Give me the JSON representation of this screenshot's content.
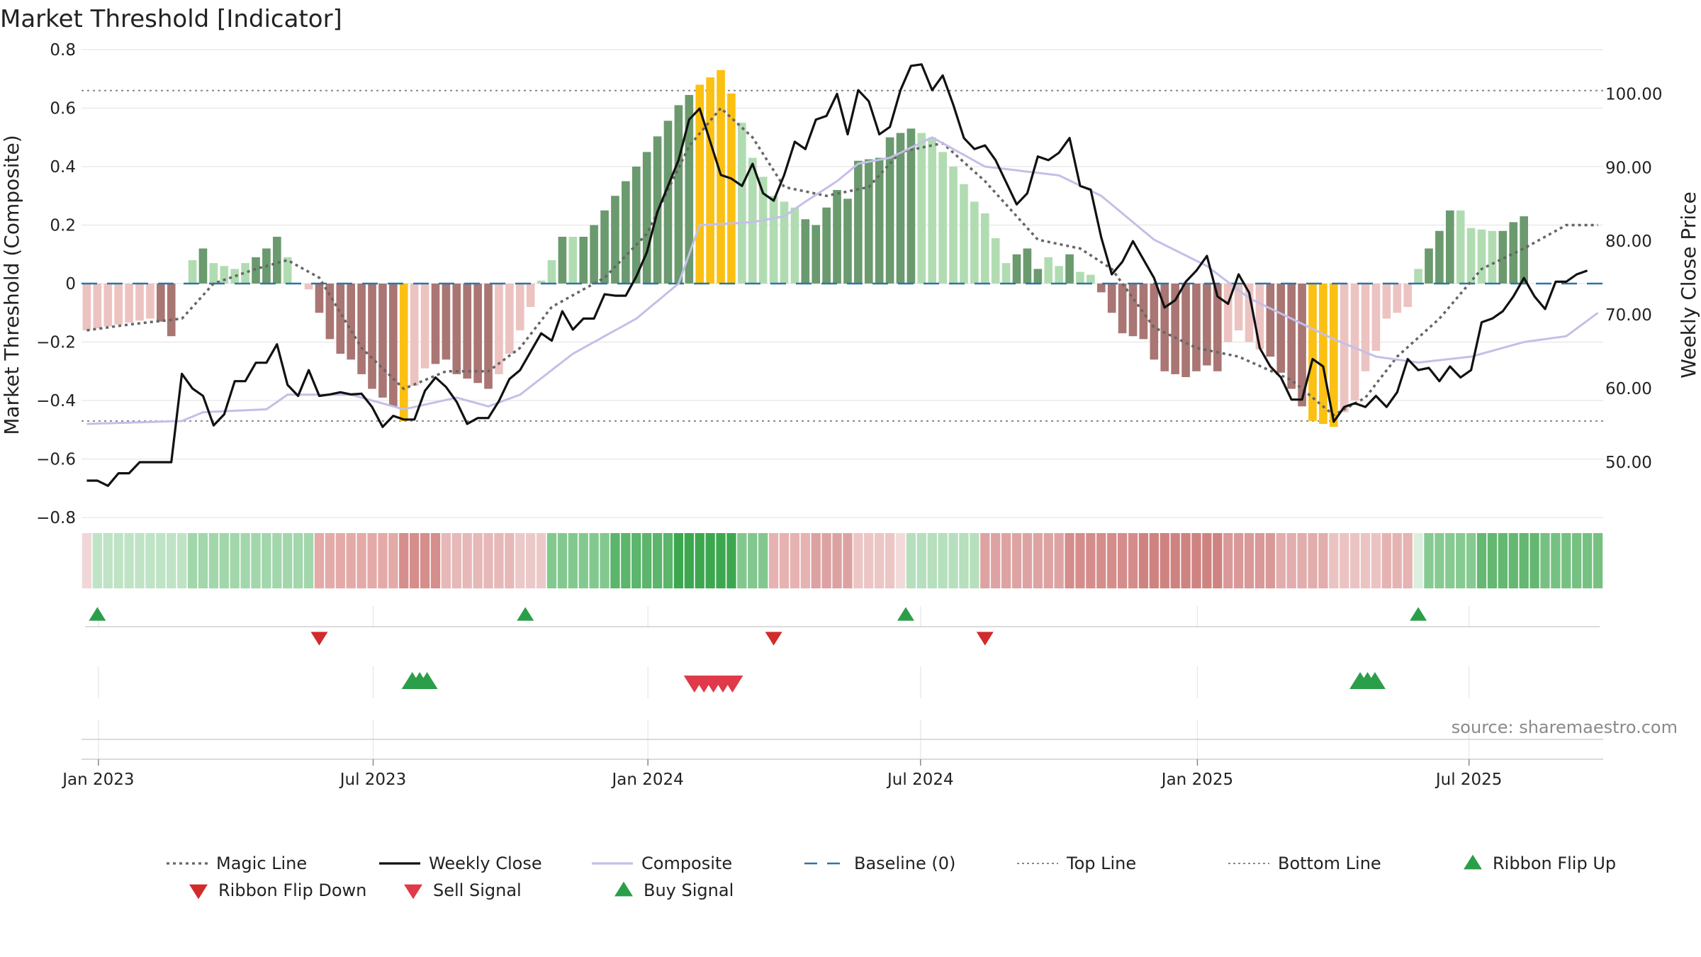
{
  "chart_data": {
    "type": "bar",
    "title": "Market Threshold [Indicator]",
    "ylabel_left": "Market Threshold (Composite)",
    "ylabel_right": "Weekly Close Price",
    "ylim_left": [
      -0.8,
      0.8
    ],
    "ylim_right": [
      42.5,
      106
    ],
    "yticks_left": [
      "0.8",
      "0.6",
      "0.4",
      "0.2",
      "0",
      "−0.2",
      "−0.4",
      "−0.6",
      "−0.8"
    ],
    "yticks_left_values": [
      0.8,
      0.6,
      0.4,
      0.2,
      0,
      -0.2,
      -0.4,
      -0.6,
      -0.8
    ],
    "yticks_right": [
      "100.00",
      "90.00",
      "80.00",
      "70.00",
      "60.00",
      "50.00"
    ],
    "yticks_right_values": [
      100,
      90,
      80,
      70,
      60,
      50
    ],
    "x_ticks": [
      "Jan 2023",
      "Jul 2023",
      "Jan 2024",
      "Jul 2024",
      "Jan 2025",
      "Jul 2025"
    ],
    "x_tick_weeks": [
      1.6,
      27.6,
      53.6,
      79.4,
      105.6,
      131.3
    ],
    "n_weeks": 144,
    "top_line": 0.66,
    "bottom_line": -0.47,
    "composite_anchors": [
      [
        0,
        -0.48
      ],
      [
        9,
        -0.47
      ],
      [
        11,
        -0.44
      ],
      [
        17,
        -0.43
      ],
      [
        19,
        -0.38
      ],
      [
        25,
        -0.38
      ],
      [
        28,
        -0.41
      ],
      [
        30,
        -0.43
      ],
      [
        35,
        -0.39
      ],
      [
        38,
        -0.42
      ],
      [
        41,
        -0.38
      ],
      [
        46,
        -0.24
      ],
      [
        52,
        -0.12
      ],
      [
        56,
        0.0
      ],
      [
        58,
        0.2
      ],
      [
        63,
        0.21
      ],
      [
        66,
        0.23
      ],
      [
        68,
        0.28
      ],
      [
        71,
        0.35
      ],
      [
        73,
        0.41
      ],
      [
        76,
        0.43
      ],
      [
        80,
        0.5
      ],
      [
        85,
        0.4
      ],
      [
        92,
        0.37
      ],
      [
        96,
        0.3
      ],
      [
        101,
        0.15
      ],
      [
        106,
        0.06
      ],
      [
        110,
        -0.05
      ],
      [
        114,
        -0.12
      ],
      [
        118,
        -0.19
      ],
      [
        122,
        -0.25
      ],
      [
        126,
        -0.27
      ],
      [
        131,
        -0.25
      ],
      [
        136,
        -0.2
      ],
      [
        140,
        -0.18
      ],
      [
        143,
        -0.1
      ]
    ],
    "magic_anchors": [
      [
        0,
        -0.16
      ],
      [
        4,
        -0.14
      ],
      [
        9,
        -0.12
      ],
      [
        12,
        0.0
      ],
      [
        16,
        0.05
      ],
      [
        19,
        0.08
      ],
      [
        22,
        0.02
      ],
      [
        26,
        -0.22
      ],
      [
        30,
        -0.36
      ],
      [
        34,
        -0.3
      ],
      [
        38,
        -0.3
      ],
      [
        41,
        -0.22
      ],
      [
        44,
        -0.08
      ],
      [
        49,
        0.02
      ],
      [
        53,
        0.17
      ],
      [
        57,
        0.47
      ],
      [
        60,
        0.6
      ],
      [
        63,
        0.5
      ],
      [
        66,
        0.33
      ],
      [
        70,
        0.3
      ],
      [
        74,
        0.33
      ],
      [
        77,
        0.45
      ],
      [
        81,
        0.48
      ],
      [
        85,
        0.35
      ],
      [
        90,
        0.15
      ],
      [
        94,
        0.12
      ],
      [
        97,
        0.05
      ],
      [
        101,
        -0.15
      ],
      [
        105,
        -0.22
      ],
      [
        109,
        -0.25
      ],
      [
        114,
        -0.33
      ],
      [
        118,
        -0.45
      ],
      [
        121,
        -0.39
      ],
      [
        124,
        -0.25
      ],
      [
        128,
        -0.12
      ],
      [
        132,
        0.05
      ],
      [
        136,
        0.12
      ],
      [
        140,
        0.2
      ],
      [
        143,
        0.2
      ]
    ],
    "weekly_close_anchors": [
      [
        0,
        47.5
      ],
      [
        1,
        47.5
      ],
      [
        2,
        46.8
      ],
      [
        3,
        48.5
      ],
      [
        4,
        48.5
      ],
      [
        5,
        50
      ],
      [
        6,
        50
      ],
      [
        7,
        50
      ],
      [
        8,
        50
      ],
      [
        9,
        62
      ],
      [
        10,
        60
      ],
      [
        11,
        59
      ],
      [
        12,
        55
      ],
      [
        13,
        56.5
      ],
      [
        14,
        61
      ],
      [
        15,
        61
      ],
      [
        16,
        63.5
      ],
      [
        17,
        63.5
      ],
      [
        18,
        66
      ],
      [
        19,
        60.5
      ],
      [
        20,
        59
      ],
      [
        21,
        62.5
      ],
      [
        22,
        59
      ],
      [
        23,
        59.2
      ],
      [
        24,
        59.5
      ],
      [
        25,
        59.2
      ],
      [
        26,
        59.3
      ],
      [
        27,
        57.5
      ],
      [
        28,
        54.8
      ],
      [
        29,
        56.3
      ],
      [
        30,
        55.8
      ],
      [
        31,
        55.8
      ],
      [
        32,
        59.7
      ],
      [
        33,
        61.5
      ],
      [
        34,
        60.2
      ],
      [
        35,
        58.2
      ],
      [
        36,
        55.2
      ],
      [
        37,
        56
      ],
      [
        38,
        56
      ],
      [
        39,
        58.3
      ],
      [
        40,
        61.3
      ],
      [
        41,
        62.5
      ],
      [
        42,
        65
      ],
      [
        43,
        67.5
      ],
      [
        44,
        66.5
      ],
      [
        45,
        70.5
      ],
      [
        46,
        68
      ],
      [
        47,
        69.5
      ],
      [
        48,
        69.5
      ],
      [
        49,
        72.8
      ],
      [
        50,
        72.6
      ],
      [
        51,
        72.6
      ],
      [
        52,
        75.2
      ],
      [
        53,
        78.5
      ],
      [
        54,
        84
      ],
      [
        55,
        87.5
      ],
      [
        56,
        91
      ],
      [
        57,
        96.5
      ],
      [
        58,
        98
      ],
      [
        59,
        93.5
      ],
      [
        60,
        89
      ],
      [
        61,
        88.5
      ],
      [
        62,
        87.5
      ],
      [
        63,
        90.5
      ],
      [
        64,
        86.5
      ],
      [
        65,
        85.5
      ],
      [
        66,
        89
      ],
      [
        67,
        93.5
      ],
      [
        68,
        92.5
      ],
      [
        69,
        96.5
      ],
      [
        70,
        97
      ],
      [
        71,
        100
      ],
      [
        72,
        94.5
      ],
      [
        73,
        100.5
      ],
      [
        74,
        99
      ],
      [
        75,
        94.5
      ],
      [
        76,
        95.5
      ],
      [
        77,
        100.5
      ],
      [
        78,
        103.8
      ],
      [
        79,
        104
      ],
      [
        80,
        100.5
      ],
      [
        81,
        102.5
      ],
      [
        82,
        98.5
      ],
      [
        83,
        94
      ],
      [
        84,
        92.5
      ],
      [
        85,
        93
      ],
      [
        86,
        91
      ],
      [
        87,
        88
      ],
      [
        88,
        85
      ],
      [
        89,
        86.5
      ],
      [
        90,
        91.5
      ],
      [
        91,
        91
      ],
      [
        92,
        92
      ],
      [
        93,
        94
      ],
      [
        94,
        87.5
      ],
      [
        95,
        87
      ],
      [
        96,
        80.5
      ],
      [
        97,
        75.5
      ],
      [
        98,
        77.2
      ],
      [
        99,
        80
      ],
      [
        100,
        77.5
      ],
      [
        101,
        75
      ],
      [
        102,
        71
      ],
      [
        103,
        72
      ],
      [
        104,
        74.5
      ],
      [
        105,
        76
      ],
      [
        106,
        78
      ],
      [
        107,
        72.5
      ],
      [
        108,
        71.5
      ],
      [
        109,
        75.5
      ],
      [
        110,
        73
      ],
      [
        111,
        65.5
      ],
      [
        112,
        63
      ],
      [
        113,
        61.5
      ],
      [
        114,
        58.5
      ],
      [
        115,
        58.5
      ],
      [
        116,
        64
      ],
      [
        117,
        63
      ],
      [
        118,
        55.5
      ],
      [
        119,
        57.5
      ],
      [
        120,
        58
      ],
      [
        121,
        57.5
      ],
      [
        122,
        59
      ],
      [
        123,
        57.5
      ],
      [
        124,
        59.5
      ],
      [
        125,
        64
      ],
      [
        126,
        62.5
      ],
      [
        127,
        62.8
      ],
      [
        128,
        61
      ],
      [
        129,
        63
      ],
      [
        130,
        61.5
      ],
      [
        131,
        62.5
      ],
      [
        132,
        69
      ],
      [
        133,
        69.5
      ],
      [
        134,
        70.5
      ],
      [
        135,
        72.5
      ],
      [
        136,
        75
      ],
      [
        137,
        72.5
      ],
      [
        138,
        70.8
      ],
      [
        139,
        74.5
      ],
      [
        140,
        74.5
      ],
      [
        141,
        75.5
      ],
      [
        142,
        76
      ]
    ],
    "histogram_pos_anchors": [
      [
        10,
        0.08
      ],
      [
        11,
        0.12
      ],
      [
        12,
        0.07
      ],
      [
        14,
        0.05
      ],
      [
        16,
        0.09
      ],
      [
        17,
        0.12
      ],
      [
        18,
        0.16
      ],
      [
        19,
        0.09
      ],
      [
        43,
        0.01
      ],
      [
        44,
        0.08
      ],
      [
        45,
        0.16
      ],
      [
        47,
        0.16
      ],
      [
        48,
        0.2
      ],
      [
        50,
        0.3
      ],
      [
        53,
        0.45
      ],
      [
        56,
        0.61
      ],
      [
        58,
        0.68
      ],
      [
        60,
        0.73
      ],
      [
        61,
        0.65
      ],
      [
        62,
        0.55
      ],
      [
        63,
        0.43
      ],
      [
        65,
        0.3
      ],
      [
        67,
        0.26
      ],
      [
        68,
        0.22
      ],
      [
        69,
        0.2
      ],
      [
        71,
        0.32
      ],
      [
        72,
        0.29
      ],
      [
        73,
        0.42
      ],
      [
        75,
        0.43
      ],
      [
        76,
        0.5
      ],
      [
        78,
        0.53
      ],
      [
        80,
        0.5
      ],
      [
        82,
        0.4
      ],
      [
        84,
        0.28
      ],
      [
        85,
        0.24
      ],
      [
        87,
        0.07
      ],
      [
        88,
        0.1
      ],
      [
        89,
        0.12
      ],
      [
        90,
        0.05
      ],
      [
        91,
        0.09
      ],
      [
        92,
        0.06
      ],
      [
        93,
        0.1
      ],
      [
        94,
        0.04
      ],
      [
        95,
        0.03
      ],
      [
        126,
        0.05
      ],
      [
        127,
        0.12
      ],
      [
        128,
        0.18
      ],
      [
        129,
        0.25
      ],
      [
        130,
        0.25
      ],
      [
        131,
        0.19
      ],
      [
        133,
        0.18
      ],
      [
        134,
        0.18
      ],
      [
        135,
        0.21
      ],
      [
        136,
        0.23
      ]
    ],
    "histogram_pos_strong": [
      11,
      16,
      17,
      18,
      45,
      47,
      48,
      49,
      50,
      51,
      52,
      53,
      54,
      55,
      56,
      57,
      68,
      69,
      70,
      71,
      72,
      73,
      74,
      75,
      76,
      77,
      78,
      88,
      89,
      90,
      93,
      127,
      128,
      129,
      134,
      135,
      136
    ],
    "histogram_neg_anchors": [
      [
        0,
        -0.16
      ],
      [
        3,
        -0.14
      ],
      [
        6,
        -0.12
      ],
      [
        7,
        -0.13
      ],
      [
        8,
        -0.18
      ],
      [
        21,
        -0.02
      ],
      [
        22,
        -0.1
      ],
      [
        23,
        -0.19
      ],
      [
        24,
        -0.24
      ],
      [
        25,
        -0.26
      ],
      [
        27,
        -0.36
      ],
      [
        28,
        -0.39
      ],
      [
        29,
        -0.42
      ],
      [
        30,
        -0.47
      ],
      [
        31,
        -0.35
      ],
      [
        32,
        -0.29
      ],
      [
        34,
        -0.26
      ],
      [
        35,
        -0.31
      ],
      [
        37,
        -0.34
      ],
      [
        38,
        -0.36
      ],
      [
        39,
        -0.31
      ],
      [
        40,
        -0.24
      ],
      [
        41,
        -0.16
      ],
      [
        42,
        -0.08
      ],
      [
        96,
        -0.03
      ],
      [
        97,
        -0.1
      ],
      [
        98,
        -0.17
      ],
      [
        100,
        -0.19
      ],
      [
        101,
        -0.26
      ],
      [
        102,
        -0.3
      ],
      [
        104,
        -0.32
      ],
      [
        106,
        -0.28
      ],
      [
        107,
        -0.3
      ],
      [
        108,
        -0.2
      ],
      [
        109,
        -0.16
      ],
      [
        110,
        -0.2
      ],
      [
        112,
        -0.25
      ],
      [
        114,
        -0.36
      ],
      [
        115,
        -0.42
      ],
      [
        116,
        -0.47
      ],
      [
        118,
        -0.49
      ],
      [
        119,
        -0.44
      ],
      [
        120,
        -0.4
      ],
      [
        121,
        -0.3
      ],
      [
        122,
        -0.23
      ],
      [
        123,
        -0.12
      ],
      [
        124,
        -0.1
      ],
      [
        125,
        -0.08
      ],
      [
        126,
        -0.05
      ]
    ],
    "histogram_neg_strong": [
      7,
      8,
      22,
      23,
      24,
      25,
      26,
      27,
      28,
      29,
      33,
      34,
      35,
      36,
      37,
      38,
      96,
      97,
      98,
      99,
      100,
      101,
      102,
      103,
      104,
      105,
      106,
      107,
      112,
      113,
      114,
      115,
      116
    ],
    "histogram_extreme_weeks": [
      30,
      58,
      59,
      60,
      61,
      116,
      117,
      118
    ],
    "ribbon_segments": [
      {
        "start": 0,
        "end": 1,
        "color": "#efd7d8"
      },
      {
        "start": 1,
        "end": 10,
        "color": "#bfe3c5"
      },
      {
        "start": 10,
        "end": 22,
        "color": "#a2d6ab"
      },
      {
        "start": 22,
        "end": 30,
        "color": "#e3aaa8"
      },
      {
        "start": 30,
        "end": 34,
        "color": "#d58e8c"
      },
      {
        "start": 34,
        "end": 41,
        "color": "#e6b8b8"
      },
      {
        "start": 41,
        "end": 44,
        "color": "#ecc9c9"
      },
      {
        "start": 44,
        "end": 50,
        "color": "#83c98f"
      },
      {
        "start": 50,
        "end": 56,
        "color": "#5bb56b"
      },
      {
        "start": 56,
        "end": 62,
        "color": "#3da750"
      },
      {
        "start": 62,
        "end": 65,
        "color": "#82c78e"
      },
      {
        "start": 65,
        "end": 69,
        "color": "#e6b2b2"
      },
      {
        "start": 69,
        "end": 73,
        "color": "#dca2a2"
      },
      {
        "start": 73,
        "end": 77,
        "color": "#ecc5c5"
      },
      {
        "start": 77,
        "end": 78,
        "color": "#f3dada"
      },
      {
        "start": 78,
        "end": 85,
        "color": "#b6dfbd"
      },
      {
        "start": 85,
        "end": 93,
        "color": "#dda3a3"
      },
      {
        "start": 93,
        "end": 100,
        "color": "#d58d8c"
      },
      {
        "start": 100,
        "end": 108,
        "color": "#cf8381"
      },
      {
        "start": 108,
        "end": 113,
        "color": "#d99998"
      },
      {
        "start": 113,
        "end": 118,
        "color": "#e2adad"
      },
      {
        "start": 118,
        "end": 123,
        "color": "#ebc3c3"
      },
      {
        "start": 123,
        "end": 126,
        "color": "#e6b3b3"
      },
      {
        "start": 126,
        "end": 127,
        "color": "#dcefdf"
      },
      {
        "start": 127,
        "end": 132,
        "color": "#86ca92"
      },
      {
        "start": 132,
        "end": 138,
        "color": "#64b871"
      },
      {
        "start": 138,
        "end": 144,
        "color": "#76c182"
      }
    ],
    "ribbon_flip_up_weeks": [
      1,
      41.5,
      77.5,
      126
    ],
    "ribbon_flip_down_weeks": [
      22,
      65,
      85
    ],
    "buy_signal_weeks": [
      30.8,
      31.5,
      32.2,
      120.5,
      121.2,
      121.9
    ],
    "sell_signal_weeks": [
      57.5,
      58.4,
      59.3,
      60.2,
      61.1
    ],
    "source_note": "source: sharemaestro.com",
    "legend": [
      {
        "label": "Magic Line",
        "symbol": "dotted-line",
        "color": "#666666"
      },
      {
        "label": "Weekly Close",
        "symbol": "solid-line",
        "color": "#111111"
      },
      {
        "label": "Composite",
        "symbol": "solid-line",
        "color": "#c4bfe8"
      },
      {
        "label": "Baseline (0)",
        "symbol": "dashed-line",
        "color": "#2f74a6"
      },
      {
        "label": "Top Line",
        "symbol": "fine-dotted-line",
        "color": "#888888"
      },
      {
        "label": "Bottom Line",
        "symbol": "fine-dotted-line",
        "color": "#888888"
      },
      {
        "label": "Ribbon Flip Up",
        "symbol": "triangle-up",
        "color": "#2b9e49"
      },
      {
        "label": "Ribbon Flip Down",
        "symbol": "triangle-down",
        "color": "#d12b2b"
      },
      {
        "label": "Sell Signal",
        "symbol": "triangle-down",
        "color": "#e0394a"
      },
      {
        "label": "Buy Signal",
        "symbol": "triangle-up",
        "color": "#2b9e49"
      }
    ],
    "colors": {
      "pos_strong": "#6a9a6e",
      "pos_weak": "#b1dcb2",
      "neg_strong": "#a97673",
      "neg_weak": "#ecc3c1",
      "extreme": "#fbc012",
      "weekly_close": "#111111",
      "composite": "#c4bfe8",
      "magic": "#666666",
      "baseline": "#2f74a6",
      "threshold": "#888888",
      "flip_up": "#2b9e49",
      "flip_down": "#d12b2b",
      "sell": "#e0394a",
      "buy": "#2b9e49"
    }
  }
}
